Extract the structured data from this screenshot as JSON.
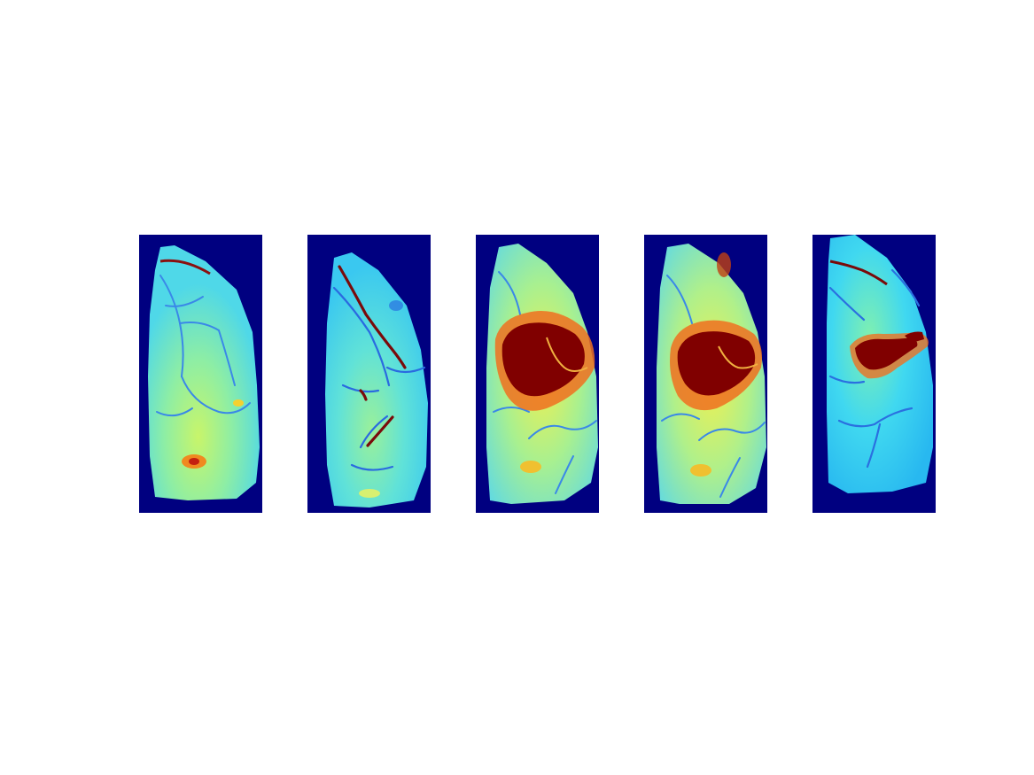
{
  "figure": {
    "background": "#ffffff",
    "colormap": "jet",
    "mask_color": "#000080"
  },
  "panels": [
    {
      "base_color": "#55e6e0",
      "activation": "none",
      "features": [
        "vessels-thin",
        "small-red-spot-lower"
      ]
    },
    {
      "base_color": "#4fdcef",
      "activation": "none",
      "features": [
        "dark-red-vessels",
        "blue-vessels"
      ]
    },
    {
      "base_color": "#8cf0a8",
      "activation": "large",
      "features": [
        "central-dark-red-region",
        "yellow-halo"
      ]
    },
    {
      "base_color": "#90ef9e",
      "activation": "large",
      "features": [
        "central-dark-red-region",
        "yellow-halo"
      ]
    },
    {
      "base_color": "#33ccf0",
      "activation": "medium",
      "features": [
        "central-dark-red-region",
        "blue-vessels"
      ]
    }
  ]
}
